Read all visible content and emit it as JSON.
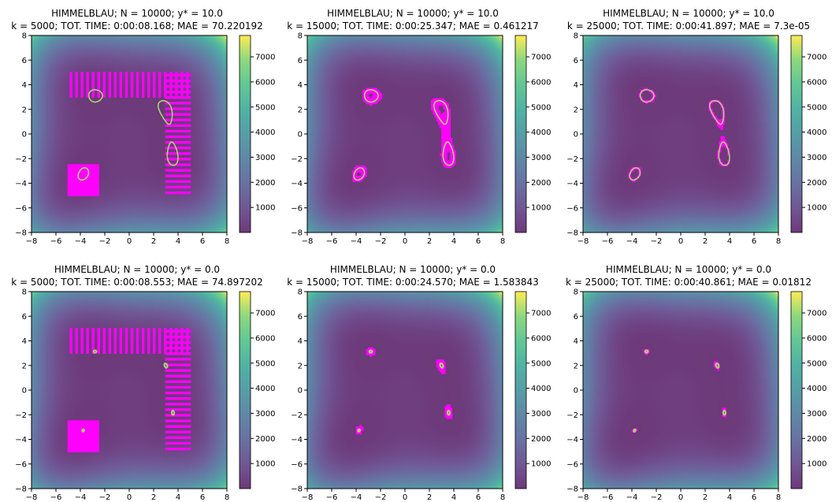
{
  "chart_data": [
    {
      "type": "heatmap",
      "title": "HIMMELBLAU; N = 10000; y* = 10.0",
      "subtitle": "k = 5000; TOT. TIME: 0:00:08.168; MAE = 70.220192",
      "function": "himmelblau",
      "xlim": [
        -8,
        8
      ],
      "ylim": [
        -8,
        8
      ],
      "xticks": [
        -8,
        -6,
        -4,
        -2,
        0,
        2,
        4,
        6,
        8
      ],
      "yticks": [
        -8,
        -6,
        -4,
        -2,
        0,
        2,
        4,
        6,
        8
      ],
      "colorbar": {
        "range": [
          0,
          7850
        ],
        "ticks": [
          1000,
          2000,
          3000,
          4000,
          5000,
          6000,
          7000
        ]
      },
      "contour_level": 10.0,
      "points_color": "#ff00ff",
      "contour_color": "#a6d96a",
      "point_regions": [
        {
          "x": [
            -5,
            5
          ],
          "y": [
            3,
            5
          ]
        },
        {
          "x": [
            3,
            5
          ],
          "y": [
            -5,
            5
          ]
        },
        {
          "x": [
            -5,
            -2.5
          ],
          "y": [
            -5,
            -2.5
          ]
        }
      ]
    },
    {
      "type": "heatmap",
      "title": "HIMMELBLAU; N = 10000; y* = 10.0",
      "subtitle": "k = 15000; TOT. TIME: 0:00:25.347; MAE = 0.461217",
      "function": "himmelblau",
      "xlim": [
        -8,
        8
      ],
      "ylim": [
        -8,
        8
      ],
      "xticks": [
        -8,
        -6,
        -4,
        -2,
        0,
        2,
        4,
        6,
        8
      ],
      "yticks": [
        -8,
        -6,
        -4,
        -2,
        0,
        2,
        4,
        6,
        8
      ],
      "colorbar": {
        "range": [
          0,
          7850
        ],
        "ticks": [
          1000,
          2000,
          3000,
          4000,
          5000,
          6000,
          7000
        ]
      },
      "contour_level": 10.0,
      "points_color": "#ff00ff",
      "contour_color": "#a6d96a",
      "point_regions": []
    },
    {
      "type": "heatmap",
      "title": "HIMMELBLAU; N = 10000; y* = 10.0",
      "subtitle": "k = 25000; TOT. TIME: 0:00:41.897; MAE = 7.3e-05",
      "function": "himmelblau",
      "xlim": [
        -8,
        8
      ],
      "ylim": [
        -8,
        8
      ],
      "xticks": [
        -8,
        -6,
        -4,
        -2,
        0,
        2,
        4,
        6,
        8
      ],
      "yticks": [
        -8,
        -6,
        -4,
        -2,
        0,
        2,
        4,
        6,
        8
      ],
      "colorbar": {
        "range": [
          0,
          7850
        ],
        "ticks": [
          1000,
          2000,
          3000,
          4000,
          5000,
          6000,
          7000
        ]
      },
      "contour_level": 10.0,
      "points_color": "#ff00ff",
      "contour_color": "#a6d96a",
      "point_regions": []
    },
    {
      "type": "heatmap",
      "title": "HIMMELBLAU; N = 10000; y* = 0.0",
      "subtitle": "k = 5000; TOT. TIME: 0:00:08.553; MAE = 74.897202",
      "function": "himmelblau",
      "xlim": [
        -8,
        8
      ],
      "ylim": [
        -8,
        8
      ],
      "xticks": [
        -8,
        -6,
        -4,
        -2,
        0,
        2,
        4,
        6,
        8
      ],
      "yticks": [
        -8,
        -6,
        -4,
        -2,
        0,
        2,
        4,
        6,
        8
      ],
      "colorbar": {
        "range": [
          0,
          7850
        ],
        "ticks": [
          1000,
          2000,
          3000,
          4000,
          5000,
          6000,
          7000
        ]
      },
      "contour_level": 0.0,
      "points_color": "#ff00ff",
      "contour_color": "#a6d96a",
      "point_regions": [
        {
          "x": [
            -5,
            5
          ],
          "y": [
            3,
            5
          ]
        },
        {
          "x": [
            3,
            5
          ],
          "y": [
            -5,
            5
          ]
        },
        {
          "x": [
            -5,
            -2.5
          ],
          "y": [
            -5,
            -2.5
          ]
        }
      ]
    },
    {
      "type": "heatmap",
      "title": "HIMMELBLAU; N = 10000; y* = 0.0",
      "subtitle": "k = 15000; TOT. TIME: 0:00:24.570; MAE = 1.583843",
      "function": "himmelblau",
      "xlim": [
        -8,
        8
      ],
      "ylim": [
        -8,
        8
      ],
      "xticks": [
        -8,
        -6,
        -4,
        -2,
        0,
        2,
        4,
        6,
        8
      ],
      "yticks": [
        -8,
        -6,
        -4,
        -2,
        0,
        2,
        4,
        6,
        8
      ],
      "colorbar": {
        "range": [
          0,
          7850
        ],
        "ticks": [
          1000,
          2000,
          3000,
          4000,
          5000,
          6000,
          7000
        ]
      },
      "contour_level": 0.0,
      "points_color": "#ff00ff",
      "contour_color": "#a6d96a",
      "point_regions": []
    },
    {
      "type": "heatmap",
      "title": "HIMMELBLAU; N = 10000; y* = 0.0",
      "subtitle": "k = 25000; TOT. TIME: 0:00:40.861; MAE = 0.01812",
      "function": "himmelblau",
      "xlim": [
        -8,
        8
      ],
      "ylim": [
        -8,
        8
      ],
      "xticks": [
        -8,
        -6,
        -4,
        -2,
        0,
        2,
        4,
        6,
        8
      ],
      "yticks": [
        -8,
        -6,
        -4,
        -2,
        0,
        2,
        4,
        6,
        8
      ],
      "colorbar": {
        "range": [
          0,
          7850
        ],
        "ticks": [
          1000,
          2000,
          3000,
          4000,
          5000,
          6000,
          7000
        ]
      },
      "contour_level": 0.0,
      "points_color": "#ff00ff",
      "contour_color": "#a6d96a",
      "point_regions": []
    }
  ]
}
